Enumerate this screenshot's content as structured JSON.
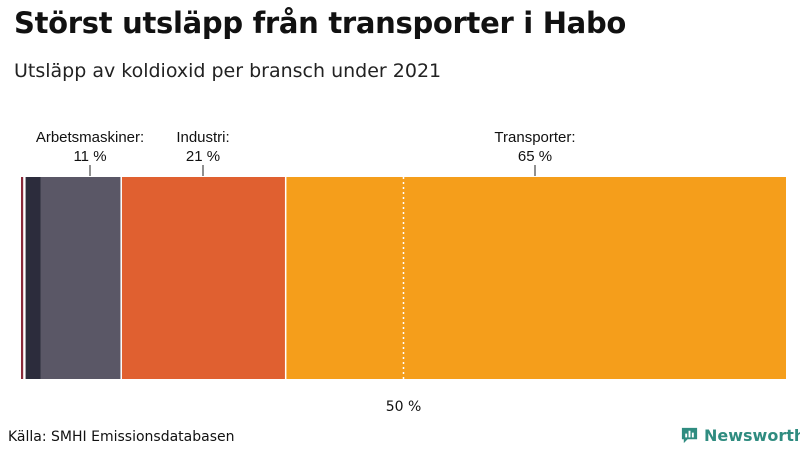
{
  "title": "Störst utsläpp från transporter i Habo",
  "subtitle": "Utsläpp av koldioxid per bransch under 2021",
  "source": "Källa: SMHI Emissionsdatabasen",
  "brand": {
    "name": "Newsworthy",
    "icon": "newsworthy-logo-icon",
    "color": "#2f8c80"
  },
  "chart_data": {
    "type": "bar",
    "orientation": "horizontal-stacked-100",
    "unit": "%",
    "xlim": [
      0,
      100
    ],
    "reference_line": {
      "value": 50,
      "label": "50 %"
    },
    "segments": [
      {
        "label": "",
        "value": 0.3,
        "color": "#8a2a3a"
      },
      {
        "label": "",
        "value": 0.3,
        "color": "#ffffff"
      },
      {
        "label": "",
        "value": 2.0,
        "color": "#2c2c3c"
      },
      {
        "label": "Arbetsmaskiner:",
        "value_label": "11 %",
        "value": 10.5,
        "color": "#5a5766"
      },
      {
        "label": "Industri:",
        "value_label": "21 %",
        "value": 21.5,
        "color": "#e06030"
      },
      {
        "label": "Transporter:",
        "value_label": "65 %",
        "value": 65.4,
        "color": "#f59e1b"
      }
    ]
  }
}
